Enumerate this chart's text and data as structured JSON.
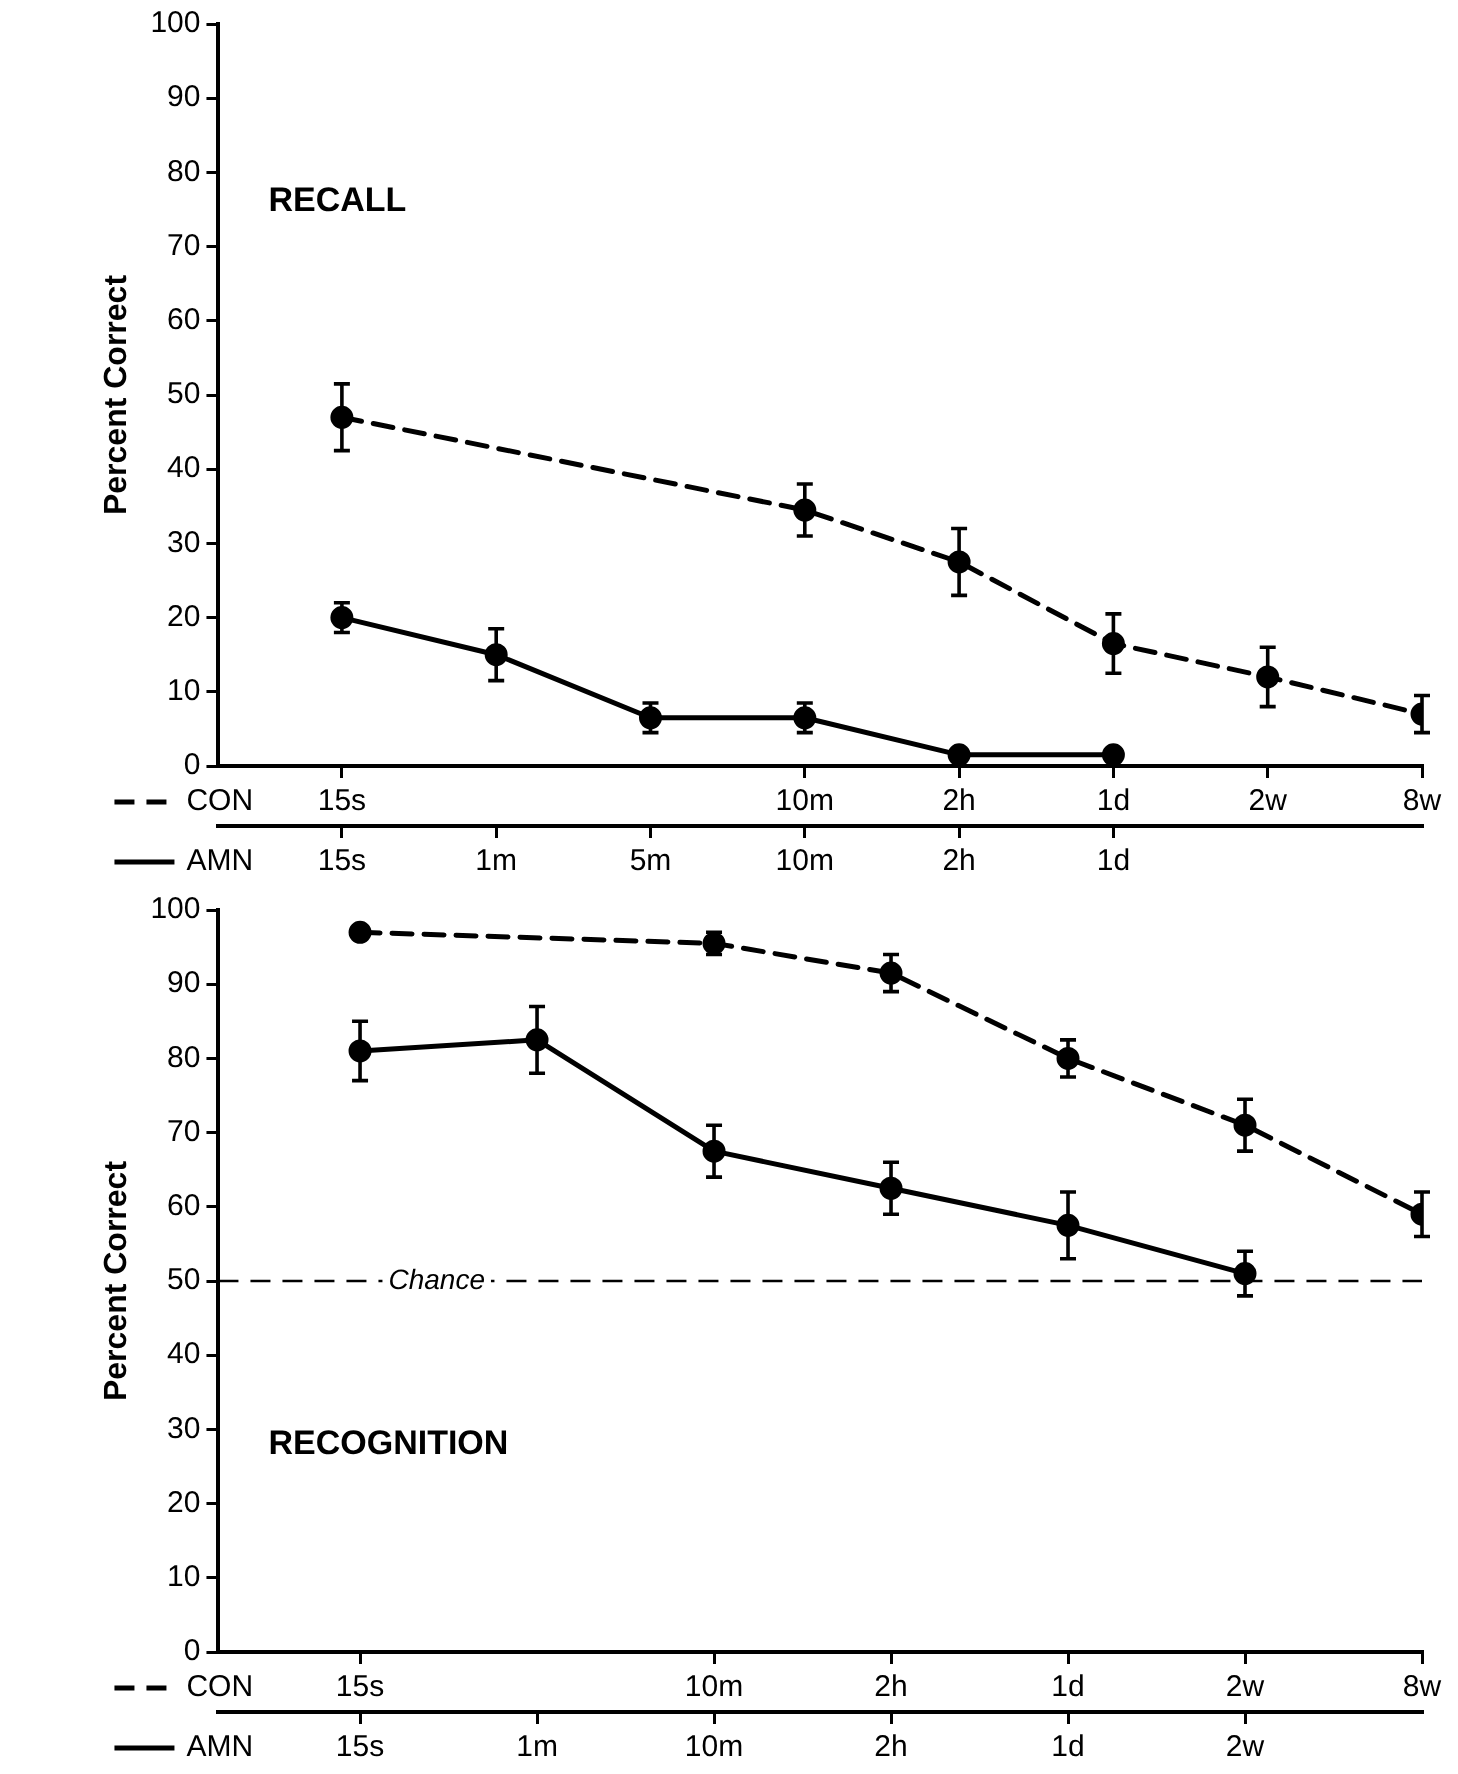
{
  "chart_data": [
    {
      "type": "line",
      "title": "RECALL",
      "ylabel": "Percent Correct",
      "grid": false,
      "marker": "circle",
      "legend": "bottom left",
      "categories": [
        "15s",
        "1m",
        "5m",
        "10m",
        "2h",
        "1d",
        "2w",
        "8w"
      ],
      "ylim": [
        0,
        100
      ],
      "yticks": [
        0,
        10,
        20,
        30,
        40,
        50,
        60,
        70,
        80,
        90,
        100
      ],
      "series": [
        {
          "name": "CON",
          "color": "#000000",
          "line_style": "dashed",
          "x": [
            "15s",
            "10m",
            "2h",
            "1d",
            "2w",
            "8w"
          ],
          "values": [
            47,
            34.5,
            27.5,
            16.5,
            12,
            7
          ],
          "errors": [
            4.5,
            3.5,
            4.5,
            4,
            4,
            2.5
          ]
        },
        {
          "name": "AMN",
          "color": "#000000",
          "line_style": "solid",
          "x": [
            "15s",
            "1m",
            "5m",
            "10m",
            "2h",
            "1d"
          ],
          "values": [
            20,
            15,
            6.5,
            6.5,
            1.5,
            1.5
          ],
          "errors": [
            2,
            3.5,
            2,
            2,
            null,
            null
          ]
        }
      ]
    },
    {
      "type": "line",
      "title": "RECOGNITION",
      "ylabel": "Percent Correct",
      "grid": false,
      "marker": "circle",
      "legend": "bottom left",
      "categories": [
        "15s",
        "1m",
        "10m",
        "2h",
        "1d",
        "2w",
        "8w"
      ],
      "ylim": [
        0,
        100
      ],
      "yticks": [
        0,
        10,
        20,
        30,
        40,
        50,
        60,
        70,
        80,
        90,
        100
      ],
      "ref_lines": [
        {
          "axis": "y",
          "value": 50,
          "label": "Chance",
          "line_style": "dashed",
          "color": "#000000"
        }
      ],
      "series": [
        {
          "name": "CON",
          "color": "#000000",
          "line_style": "dashed",
          "x": [
            "15s",
            "10m",
            "2h",
            "1d",
            "2w",
            "8w"
          ],
          "values": [
            97,
            95.5,
            91.5,
            80,
            71,
            59
          ],
          "errors": [
            null,
            1.5,
            2.5,
            2.5,
            3.5,
            3
          ]
        },
        {
          "name": "AMN",
          "color": "#000000",
          "line_style": "solid",
          "x": [
            "15s",
            "1m",
            "10m",
            "2h",
            "1d",
            "2w"
          ],
          "values": [
            81,
            82.5,
            67.5,
            62.5,
            57.5,
            51
          ],
          "errors": [
            4,
            4.5,
            3.5,
            3.5,
            4.5,
            3
          ]
        }
      ]
    }
  ]
}
